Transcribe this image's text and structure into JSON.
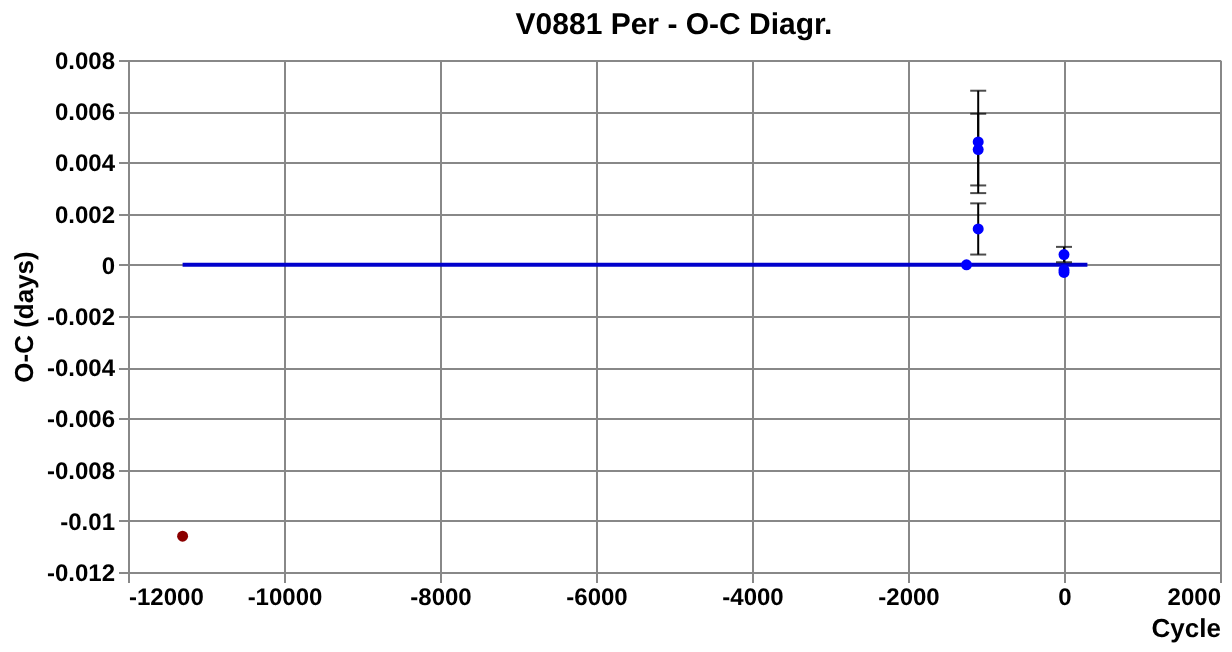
{
  "chart_data": {
    "type": "scatter",
    "title": "V0881 Per - O-C Diagr.",
    "xlabel": "Cycle",
    "ylabel": "O-C  (days)",
    "xlim": [
      -12000,
      2000
    ],
    "xticks": [
      -12000,
      -10000,
      -8000,
      -6000,
      -4000,
      -2000,
      0,
      2000
    ],
    "ylim": [
      -0.012,
      0.008
    ],
    "yticks": [
      -0.012,
      -0.01,
      -0.008,
      -0.006,
      -0.004,
      -0.002,
      0,
      0.002,
      0.004,
      0.006,
      0.008
    ],
    "grid": true,
    "legend": false,
    "marker": "circle",
    "series": [
      {
        "type": "line",
        "marker": "none",
        "color": "#0000cc",
        "x": [
          -11300,
          300
        ],
        "values": [
          0,
          0
        ]
      },
      {
        "type": "scatter",
        "color": "#8b0000",
        "x": [
          -11300
        ],
        "values": [
          -0.0106
        ]
      },
      {
        "type": "scatter",
        "color": "#0000ff",
        "x": [
          -1250,
          -1100,
          -1100,
          -1100,
          0,
          0,
          0
        ],
        "values": [
          0,
          0.0048,
          0.0045,
          0.0014,
          0.0004,
          -0.0002,
          -0.0003
        ],
        "errors": [
          null,
          0.002,
          0.0014,
          0.001,
          0.0003,
          null,
          null
        ]
      }
    ]
  }
}
